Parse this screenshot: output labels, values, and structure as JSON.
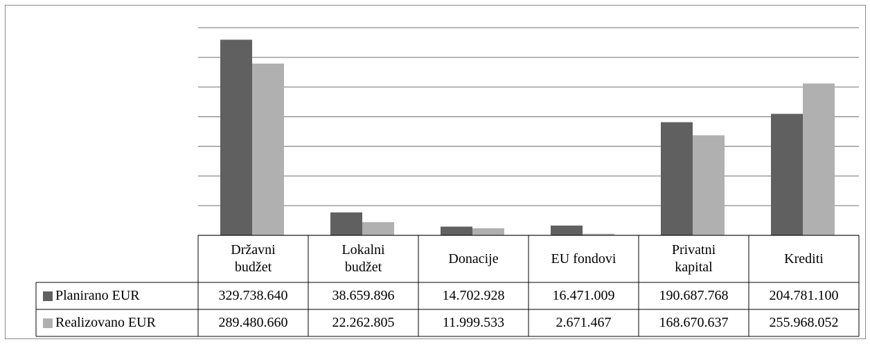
{
  "chart_data": {
    "type": "bar",
    "categories": [
      "Državni budžet",
      "Lokalni budžet",
      "Donacije",
      "EU fondovi",
      "Privatni kapital",
      "Krediti"
    ],
    "series": [
      {
        "name": "Planirano EUR",
        "color": "#606060",
        "values": [
          329738640,
          38659896,
          14702928,
          16471009,
          190687768,
          204781100
        ],
        "value_labels": [
          "329.738.640",
          "38.659.896",
          "14.702.928",
          "16.471.009",
          "190.687.768",
          "204.781.100"
        ]
      },
      {
        "name": "Realizovano EUR",
        "color": "#b0b0b0",
        "values": [
          289480660,
          22262805,
          11999533,
          2671467,
          168670637,
          255968052
        ],
        "value_labels": [
          "289.480.660",
          "22.262.805",
          "11.999.533",
          "2.671.467",
          "168.670.637",
          "255.968.052"
        ]
      }
    ],
    "ylim": [
      0,
      350000000
    ],
    "yticks": [
      0,
      50000000,
      100000000,
      150000000,
      200000000,
      250000000,
      300000000,
      350000000
    ],
    "grid": true
  }
}
